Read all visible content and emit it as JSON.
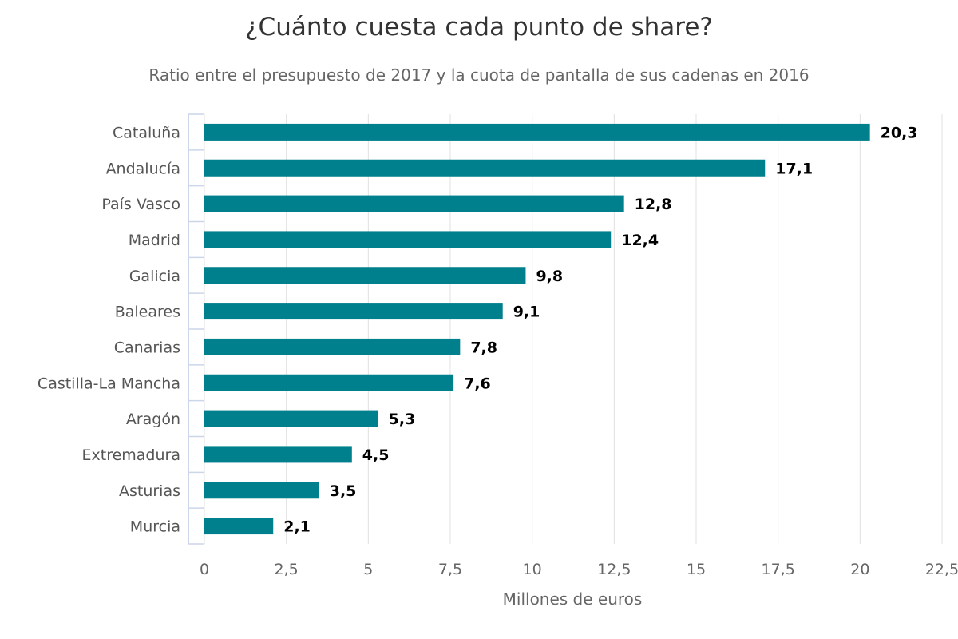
{
  "chart_data": {
    "type": "bar",
    "orientation": "horizontal",
    "title": "¿Cuánto cuesta cada punto de share?",
    "subtitle": "Ratio entre el presupuesto de 2017 y la cuota de pantalla de sus cadenas en 2016",
    "xlabel": "Millones de euros",
    "ylabel": "",
    "categories": [
      "Cataluña",
      "Andalucía",
      "País Vasco",
      "Madrid",
      "Galicia",
      "Baleares",
      "Canarias",
      "Castilla-La Mancha",
      "Aragón",
      "Extremadura",
      "Asturias",
      "Murcia"
    ],
    "values": [
      20.3,
      17.1,
      12.8,
      12.4,
      9.8,
      9.1,
      7.8,
      7.6,
      5.3,
      4.5,
      3.5,
      2.1
    ],
    "value_labels": [
      "20,3",
      "17,1",
      "12,8",
      "12,4",
      "9,8",
      "9,1",
      "7,8",
      "7,6",
      "5,3",
      "4,5",
      "3,5",
      "2,1"
    ],
    "xlim": [
      0,
      22.5
    ],
    "ticks": [
      0,
      2.5,
      5,
      7.5,
      10,
      12.5,
      15,
      17.5,
      20,
      22.5
    ],
    "tick_labels": [
      "0",
      "2,5",
      "5",
      "7,5",
      "10",
      "12,5",
      "15",
      "17,5",
      "20",
      "22,5"
    ],
    "grid": true,
    "legend": "none",
    "colors": {
      "bar": "#007F8C",
      "grid": "#e0e0e0",
      "axis": "#ccd6eb"
    }
  }
}
